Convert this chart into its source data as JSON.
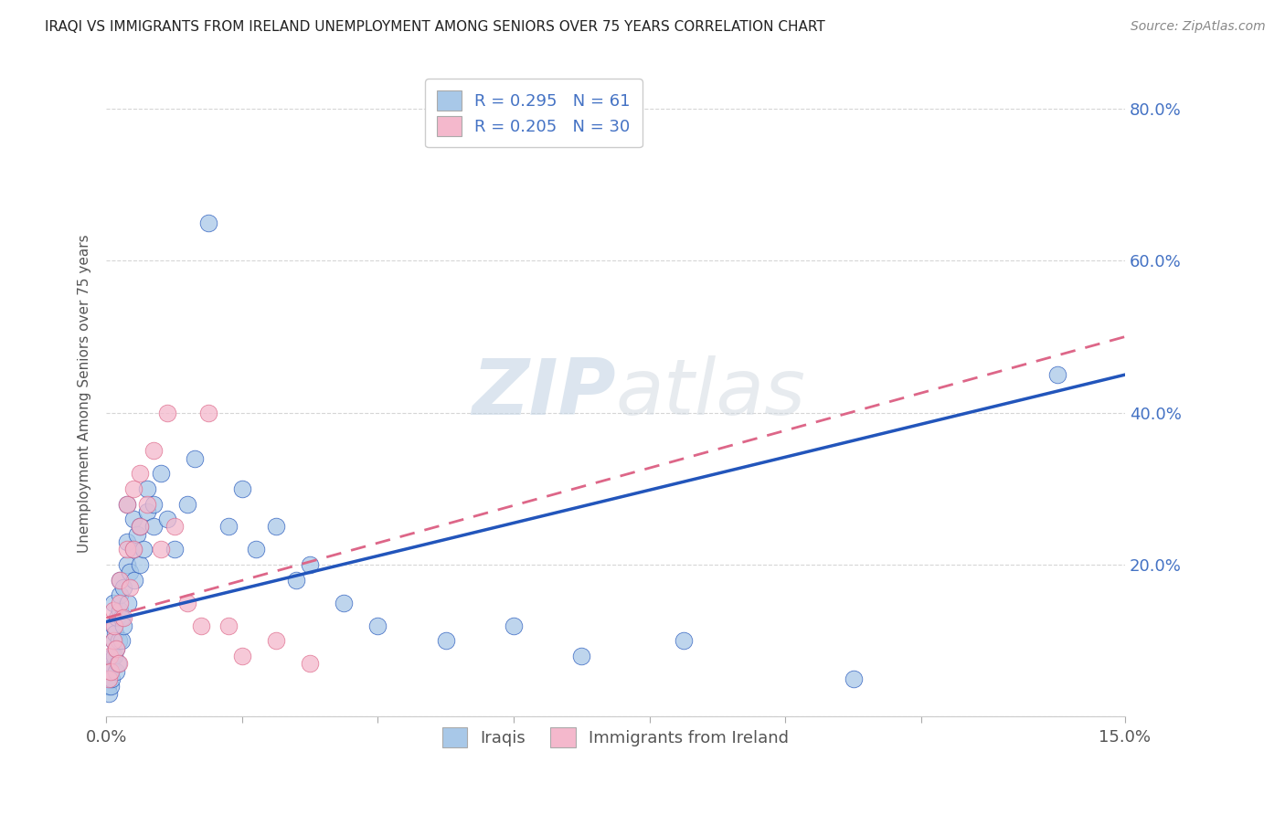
{
  "title": "IRAQI VS IMMIGRANTS FROM IRELAND UNEMPLOYMENT AMONG SENIORS OVER 75 YEARS CORRELATION CHART",
  "source": "Source: ZipAtlas.com",
  "ylabel": "Unemployment Among Seniors over 75 years",
  "xlim": [
    0.0,
    0.15
  ],
  "ylim": [
    0.0,
    0.85
  ],
  "y_ticks": [
    0.0,
    0.2,
    0.4,
    0.6,
    0.8
  ],
  "y_tick_labels": [
    "",
    "20.0%",
    "40.0%",
    "60.0%",
    "80.0%"
  ],
  "x_ticks": [
    0.0,
    0.02,
    0.04,
    0.06,
    0.08,
    0.1,
    0.12,
    0.15
  ],
  "series1_color": "#a8c8e8",
  "series2_color": "#f4b8cc",
  "line1_color": "#2255bb",
  "line2_color": "#dd6688",
  "watermark": "ZIPatlas",
  "iraqis_x": [
    0.0002,
    0.0003,
    0.0004,
    0.0005,
    0.0006,
    0.0007,
    0.0008,
    0.0009,
    0.001,
    0.001,
    0.001,
    0.0012,
    0.0013,
    0.0014,
    0.0015,
    0.0016,
    0.0017,
    0.0018,
    0.002,
    0.002,
    0.002,
    0.0022,
    0.0023,
    0.0025,
    0.0025,
    0.003,
    0.003,
    0.003,
    0.0032,
    0.0035,
    0.004,
    0.004,
    0.0042,
    0.0045,
    0.005,
    0.005,
    0.0055,
    0.006,
    0.006,
    0.007,
    0.007,
    0.008,
    0.009,
    0.01,
    0.012,
    0.013,
    0.015,
    0.018,
    0.02,
    0.022,
    0.025,
    0.028,
    0.03,
    0.035,
    0.04,
    0.05,
    0.06,
    0.07,
    0.085,
    0.11,
    0.14
  ],
  "iraqis_y": [
    0.04,
    0.03,
    0.05,
    0.06,
    0.04,
    0.07,
    0.05,
    0.08,
    0.1,
    0.12,
    0.15,
    0.08,
    0.11,
    0.06,
    0.09,
    0.13,
    0.07,
    0.1,
    0.14,
    0.16,
    0.18,
    0.1,
    0.13,
    0.12,
    0.17,
    0.2,
    0.23,
    0.28,
    0.15,
    0.19,
    0.22,
    0.26,
    0.18,
    0.24,
    0.2,
    0.25,
    0.22,
    0.27,
    0.3,
    0.25,
    0.28,
    0.32,
    0.26,
    0.22,
    0.28,
    0.34,
    0.65,
    0.25,
    0.3,
    0.22,
    0.25,
    0.18,
    0.2,
    0.15,
    0.12,
    0.1,
    0.12,
    0.08,
    0.1,
    0.05,
    0.45
  ],
  "ireland_x": [
    0.0003,
    0.0005,
    0.0007,
    0.001,
    0.001,
    0.0012,
    0.0015,
    0.0018,
    0.002,
    0.002,
    0.0025,
    0.003,
    0.003,
    0.0035,
    0.004,
    0.004,
    0.005,
    0.005,
    0.006,
    0.007,
    0.008,
    0.009,
    0.01,
    0.012,
    0.014,
    0.015,
    0.018,
    0.02,
    0.025,
    0.03
  ],
  "ireland_y": [
    0.05,
    0.08,
    0.06,
    0.1,
    0.14,
    0.12,
    0.09,
    0.07,
    0.15,
    0.18,
    0.13,
    0.22,
    0.28,
    0.17,
    0.22,
    0.3,
    0.25,
    0.32,
    0.28,
    0.35,
    0.22,
    0.4,
    0.25,
    0.15,
    0.12,
    0.4,
    0.12,
    0.08,
    0.1,
    0.07
  ],
  "line1_x": [
    0.0,
    0.15
  ],
  "line1_y": [
    0.125,
    0.45
  ],
  "line2_x": [
    0.0,
    0.15
  ],
  "line2_y": [
    0.13,
    0.5
  ]
}
